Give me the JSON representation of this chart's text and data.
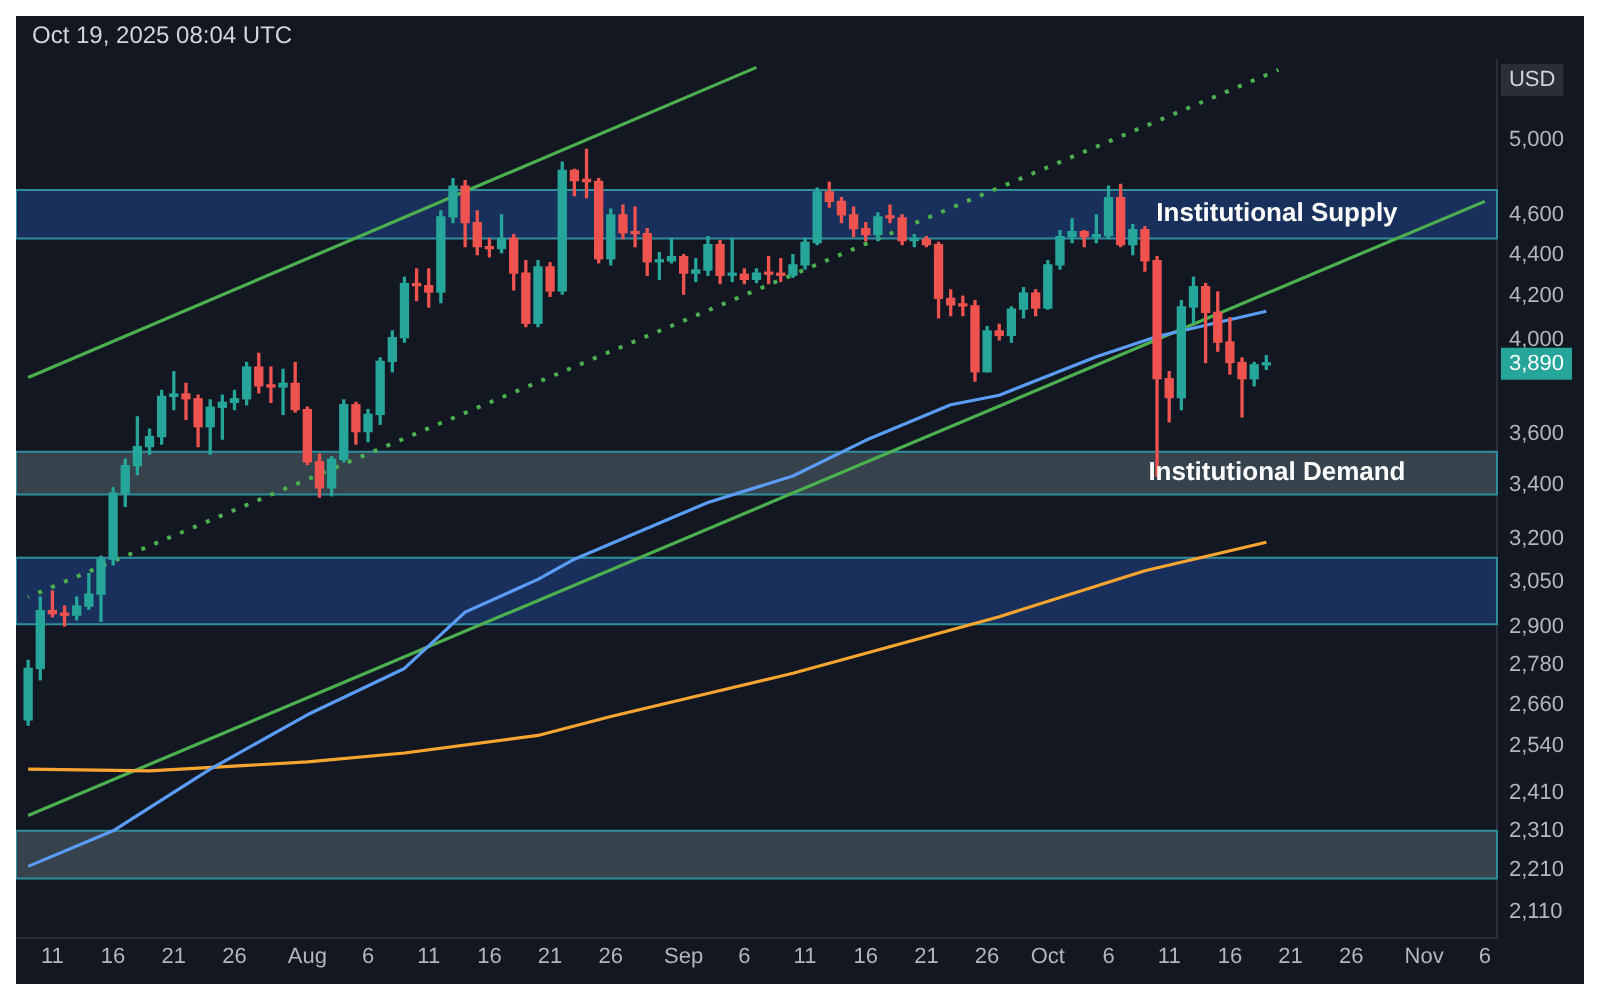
{
  "chart_data": {
    "type": "candlestick",
    "ylabel": "USD",
    "x": [
      "2025-07-09",
      "2025-07-10",
      "2025-07-11",
      "2025-07-12",
      "2025-07-13",
      "2025-07-14",
      "2025-07-15",
      "2025-07-16",
      "2025-07-17",
      "2025-07-18",
      "2025-07-19",
      "2025-07-20",
      "2025-07-21",
      "2025-07-22",
      "2025-07-23",
      "2025-07-24",
      "2025-07-25",
      "2025-07-26",
      "2025-07-27",
      "2025-07-28",
      "2025-07-29",
      "2025-07-30",
      "2025-07-31",
      "2025-08-01",
      "2025-08-02",
      "2025-08-03",
      "2025-08-04",
      "2025-08-05",
      "2025-08-06",
      "2025-08-07",
      "2025-08-08",
      "2025-08-09",
      "2025-08-10",
      "2025-08-11",
      "2025-08-12",
      "2025-08-13",
      "2025-08-14",
      "2025-08-15",
      "2025-08-16",
      "2025-08-17",
      "2025-08-18",
      "2025-08-19",
      "2025-08-20",
      "2025-08-21",
      "2025-08-22",
      "2025-08-23",
      "2025-08-24",
      "2025-08-25",
      "2025-08-26",
      "2025-08-27",
      "2025-08-28",
      "2025-08-29",
      "2025-08-30",
      "2025-08-31",
      "2025-09-01",
      "2025-09-02",
      "2025-09-03",
      "2025-09-04",
      "2025-09-05",
      "2025-09-06",
      "2025-09-07",
      "2025-09-08",
      "2025-09-09",
      "2025-09-10",
      "2025-09-11",
      "2025-09-12",
      "2025-09-13",
      "2025-09-14",
      "2025-09-15",
      "2025-09-16",
      "2025-09-17",
      "2025-09-18",
      "2025-09-19",
      "2025-09-20",
      "2025-09-21",
      "2025-09-22",
      "2025-09-23",
      "2025-09-24",
      "2025-09-25",
      "2025-09-26",
      "2025-09-27",
      "2025-09-28",
      "2025-09-29",
      "2025-09-30",
      "2025-10-01",
      "2025-10-02",
      "2025-10-03",
      "2025-10-04",
      "2025-10-05",
      "2025-10-06",
      "2025-10-07",
      "2025-10-08",
      "2025-10-09",
      "2025-10-10",
      "2025-10-11",
      "2025-10-12",
      "2025-10-13",
      "2025-10-14",
      "2025-10-15",
      "2025-10-16",
      "2025-10-17",
      "2025-10-18",
      "2025-10-19"
    ],
    "ohlc": [
      [
        2615,
        2795,
        2600,
        2770
      ],
      [
        2770,
        3000,
        2735,
        2955
      ],
      [
        2955,
        3020,
        2935,
        2945
      ],
      [
        2945,
        2970,
        2905,
        2940
      ],
      [
        2940,
        3000,
        2925,
        2970
      ],
      [
        2970,
        3080,
        2960,
        3010
      ],
      [
        3010,
        3140,
        2920,
        3130
      ],
      [
        3130,
        3390,
        3110,
        3370
      ],
      [
        3370,
        3500,
        3320,
        3475
      ],
      [
        3475,
        3670,
        3440,
        3550
      ],
      [
        3550,
        3620,
        3520,
        3590
      ],
      [
        3590,
        3780,
        3560,
        3755
      ],
      [
        3755,
        3860,
        3700,
        3765
      ],
      [
        3765,
        3810,
        3660,
        3745
      ],
      [
        3745,
        3760,
        3550,
        3630
      ],
      [
        3630,
        3740,
        3520,
        3710
      ],
      [
        3710,
        3760,
        3580,
        3730
      ],
      [
        3730,
        3780,
        3700,
        3745
      ],
      [
        3745,
        3900,
        3720,
        3880
      ],
      [
        3880,
        3940,
        3770,
        3800
      ],
      [
        3800,
        3880,
        3730,
        3795
      ],
      [
        3795,
        3870,
        3680,
        3810
      ],
      [
        3810,
        3900,
        3690,
        3700
      ],
      [
        3700,
        3710,
        3480,
        3490
      ],
      [
        3490,
        3520,
        3355,
        3390
      ],
      [
        3390,
        3510,
        3360,
        3500
      ],
      [
        3500,
        3740,
        3490,
        3720
      ],
      [
        3720,
        3730,
        3560,
        3610
      ],
      [
        3610,
        3700,
        3570,
        3680
      ],
      [
        3680,
        3920,
        3640,
        3905
      ],
      [
        3905,
        4040,
        3860,
        4010
      ],
      [
        4010,
        4290,
        3990,
        4260
      ],
      [
        4260,
        4330,
        4180,
        4250
      ],
      [
        4250,
        4330,
        4150,
        4220
      ],
      [
        4220,
        4620,
        4170,
        4590
      ],
      [
        4590,
        4790,
        4560,
        4750
      ],
      [
        4750,
        4780,
        4440,
        4560
      ],
      [
        4560,
        4620,
        4400,
        4440
      ],
      [
        4440,
        4480,
        4390,
        4430
      ],
      [
        4430,
        4600,
        4410,
        4480
      ],
      [
        4480,
        4500,
        4230,
        4310
      ],
      [
        4310,
        4370,
        4060,
        4075
      ],
      [
        4075,
        4370,
        4060,
        4340
      ],
      [
        4340,
        4360,
        4200,
        4225
      ],
      [
        4225,
        4880,
        4210,
        4835
      ],
      [
        4835,
        4840,
        4700,
        4780
      ],
      [
        4780,
        4950,
        4690,
        4775
      ],
      [
        4775,
        4790,
        4360,
        4380
      ],
      [
        4380,
        4630,
        4350,
        4600
      ],
      [
        4600,
        4650,
        4480,
        4510
      ],
      [
        4510,
        4640,
        4440,
        4505
      ],
      [
        4505,
        4530,
        4300,
        4365
      ],
      [
        4365,
        4410,
        4280,
        4370
      ],
      [
        4370,
        4480,
        4360,
        4390
      ],
      [
        4390,
        4400,
        4210,
        4310
      ],
      [
        4310,
        4380,
        4270,
        4325
      ],
      [
        4325,
        4490,
        4300,
        4450
      ],
      [
        4450,
        4470,
        4260,
        4300
      ],
      [
        4300,
        4480,
        4270,
        4305
      ],
      [
        4305,
        4330,
        4260,
        4280
      ],
      [
        4280,
        4330,
        4265,
        4310
      ],
      [
        4310,
        4390,
        4260,
        4305
      ],
      [
        4305,
        4380,
        4270,
        4300
      ],
      [
        4300,
        4400,
        4290,
        4350
      ],
      [
        4350,
        4480,
        4330,
        4460
      ],
      [
        4460,
        4740,
        4450,
        4720
      ],
      [
        4720,
        4770,
        4640,
        4670
      ],
      [
        4670,
        4690,
        4560,
        4600
      ],
      [
        4600,
        4640,
        4490,
        4530
      ],
      [
        4530,
        4560,
        4470,
        4500
      ],
      [
        4500,
        4610,
        4470,
        4590
      ],
      [
        4590,
        4650,
        4560,
        4585
      ],
      [
        4585,
        4600,
        4450,
        4470
      ],
      [
        4470,
        4500,
        4440,
        4475
      ],
      [
        4475,
        4490,
        4440,
        4450
      ],
      [
        4450,
        4460,
        4100,
        4190
      ],
      [
        4190,
        4230,
        4110,
        4160
      ],
      [
        4160,
        4200,
        4110,
        4155
      ],
      [
        4155,
        4180,
        3820,
        3860
      ],
      [
        3860,
        4060,
        3860,
        4040
      ],
      [
        4040,
        4070,
        4000,
        4020
      ],
      [
        4020,
        4150,
        3990,
        4140
      ],
      [
        4140,
        4240,
        4100,
        4215
      ],
      [
        4215,
        4230,
        4110,
        4145
      ],
      [
        4145,
        4370,
        4140,
        4350
      ],
      [
        4350,
        4520,
        4330,
        4490
      ],
      [
        4490,
        4580,
        4460,
        4515
      ],
      [
        4515,
        4520,
        4440,
        4490
      ],
      [
        4490,
        4600,
        4460,
        4495
      ],
      [
        4495,
        4750,
        4480,
        4690
      ],
      [
        4690,
        4760,
        4440,
        4450
      ],
      [
        4450,
        4550,
        4400,
        4525
      ],
      [
        4525,
        4540,
        4320,
        4370
      ],
      [
        4370,
        4390,
        3435,
        3830
      ],
      [
        3830,
        3860,
        3650,
        3750
      ],
      [
        3750,
        4180,
        3700,
        4150
      ],
      [
        4150,
        4290,
        4080,
        4245
      ],
      [
        4245,
        4260,
        3900,
        4125
      ],
      [
        4125,
        4220,
        3950,
        3990
      ],
      [
        3990,
        4100,
        3850,
        3900
      ],
      [
        3900,
        3920,
        3670,
        3830
      ],
      [
        3830,
        3900,
        3800,
        3890
      ],
      [
        3890,
        3930,
        3870,
        3895
      ]
    ],
    "series": [
      {
        "type": "line",
        "color": "#5b9cf6",
        "line_style": "solid",
        "x": [
          "2025-07-09",
          "2025-07-16",
          "2025-07-24",
          "2025-08-01",
          "2025-08-09",
          "2025-08-14",
          "2025-08-20",
          "2025-08-23",
          "2025-09-03",
          "2025-09-10",
          "2025-09-16",
          "2025-09-23",
          "2025-09-27",
          "2025-10-05",
          "2025-10-10",
          "2025-10-19"
        ],
        "values": [
          2220,
          2310,
          2475,
          2630,
          2770,
          2950,
          3060,
          3130,
          3335,
          3435,
          3575,
          3720,
          3760,
          3925,
          4015,
          4130
        ]
      },
      {
        "type": "line",
        "color": "#f7a531",
        "line_style": "solid",
        "x": [
          "2025-07-09",
          "2025-07-19",
          "2025-08-01",
          "2025-08-09",
          "2025-08-20",
          "2025-08-26",
          "2025-09-10",
          "2025-09-27",
          "2025-10-09",
          "2025-10-19"
        ],
        "values": [
          2475,
          2470,
          2495,
          2520,
          2570,
          2625,
          2755,
          2935,
          3090,
          3190
        ]
      },
      {
        "type": "line",
        "color": "#4caf50",
        "line_style": "solid",
        "x": [
          "2025-07-09",
          "2025-09-07"
        ],
        "values": [
          3835,
          5425
        ]
      },
      {
        "type": "line",
        "color": "#4caf50",
        "line_style": "dotted",
        "x": [
          "2025-07-09",
          "2025-10-20"
        ],
        "values": [
          3000,
          5410
        ]
      },
      {
        "type": "line",
        "color": "#4caf50",
        "line_style": "solid",
        "x": [
          "2025-07-09",
          "2025-11-06"
        ],
        "values": [
          2350,
          4670
        ]
      }
    ],
    "bands": [
      {
        "axis": "y",
        "from": 4480,
        "to": 4730,
        "label": "Institutional Supply",
        "color": "#1c3566"
      },
      {
        "axis": "y",
        "from": 3365,
        "to": 3530,
        "label": "Institutional Demand",
        "color": "#3d4b55"
      },
      {
        "axis": "y",
        "from": 2910,
        "to": 3135,
        "color": "#1c3566"
      },
      {
        "axis": "y",
        "from": 2190,
        "to": 2310,
        "color": "#3d4b55"
      }
    ],
    "log": "y",
    "xlim": [
      "2025-07-08",
      "2025-11-07"
    ],
    "xticks": [
      {
        "value": "2025-07-11",
        "label": "11"
      },
      {
        "value": "2025-07-16",
        "label": "16"
      },
      {
        "value": "2025-07-21",
        "label": "21"
      },
      {
        "value": "2025-07-26",
        "label": "26"
      },
      {
        "value": "2025-08-01",
        "label": "Aug"
      },
      {
        "value": "2025-08-06",
        "label": "6"
      },
      {
        "value": "2025-08-11",
        "label": "11"
      },
      {
        "value": "2025-08-16",
        "label": "16"
      },
      {
        "value": "2025-08-21",
        "label": "21"
      },
      {
        "value": "2025-08-26",
        "label": "26"
      },
      {
        "value": "2025-09-01",
        "label": "Sep"
      },
      {
        "value": "2025-09-06",
        "label": "6"
      },
      {
        "value": "2025-09-11",
        "label": "11"
      },
      {
        "value": "2025-09-16",
        "label": "16"
      },
      {
        "value": "2025-09-21",
        "label": "21"
      },
      {
        "value": "2025-09-26",
        "label": "26"
      },
      {
        "value": "2025-10-01",
        "label": "Oct"
      },
      {
        "value": "2025-10-06",
        "label": "6"
      },
      {
        "value": "2025-10-11",
        "label": "11"
      },
      {
        "value": "2025-10-16",
        "label": "16"
      },
      {
        "value": "2025-10-21",
        "label": "21"
      },
      {
        "value": "2025-10-26",
        "label": "26"
      },
      {
        "value": "2025-11-01",
        "label": "Nov"
      },
      {
        "value": "2025-11-06",
        "label": "6"
      }
    ],
    "ylim": [
      2050,
      5470
    ],
    "yticks": [
      {
        "value": 5000,
        "label": "5,000"
      },
      {
        "value": 4600,
        "label": "4,600"
      },
      {
        "value": 4400,
        "label": "4,400"
      },
      {
        "value": 4200,
        "label": "4,200"
      },
      {
        "value": 4000,
        "label": "4,000"
      },
      {
        "value": 3600,
        "label": "3,600"
      },
      {
        "value": 3400,
        "label": "3,400"
      },
      {
        "value": 3200,
        "label": "3,200"
      },
      {
        "value": 3050,
        "label": "3,050"
      },
      {
        "value": 2900,
        "label": "2,900"
      },
      {
        "value": 2780,
        "label": "2,780"
      },
      {
        "value": 2660,
        "label": "2,660"
      },
      {
        "value": 2540,
        "label": "2,540"
      },
      {
        "value": 2410,
        "label": "2,410"
      },
      {
        "value": 2310,
        "label": "2,310"
      },
      {
        "value": 2210,
        "label": "2,210"
      },
      {
        "value": 2110,
        "label": "2,110"
      }
    ],
    "annotations": [
      "Oct 19, 2025 08:04 UTC",
      "3,890"
    ]
  }
}
